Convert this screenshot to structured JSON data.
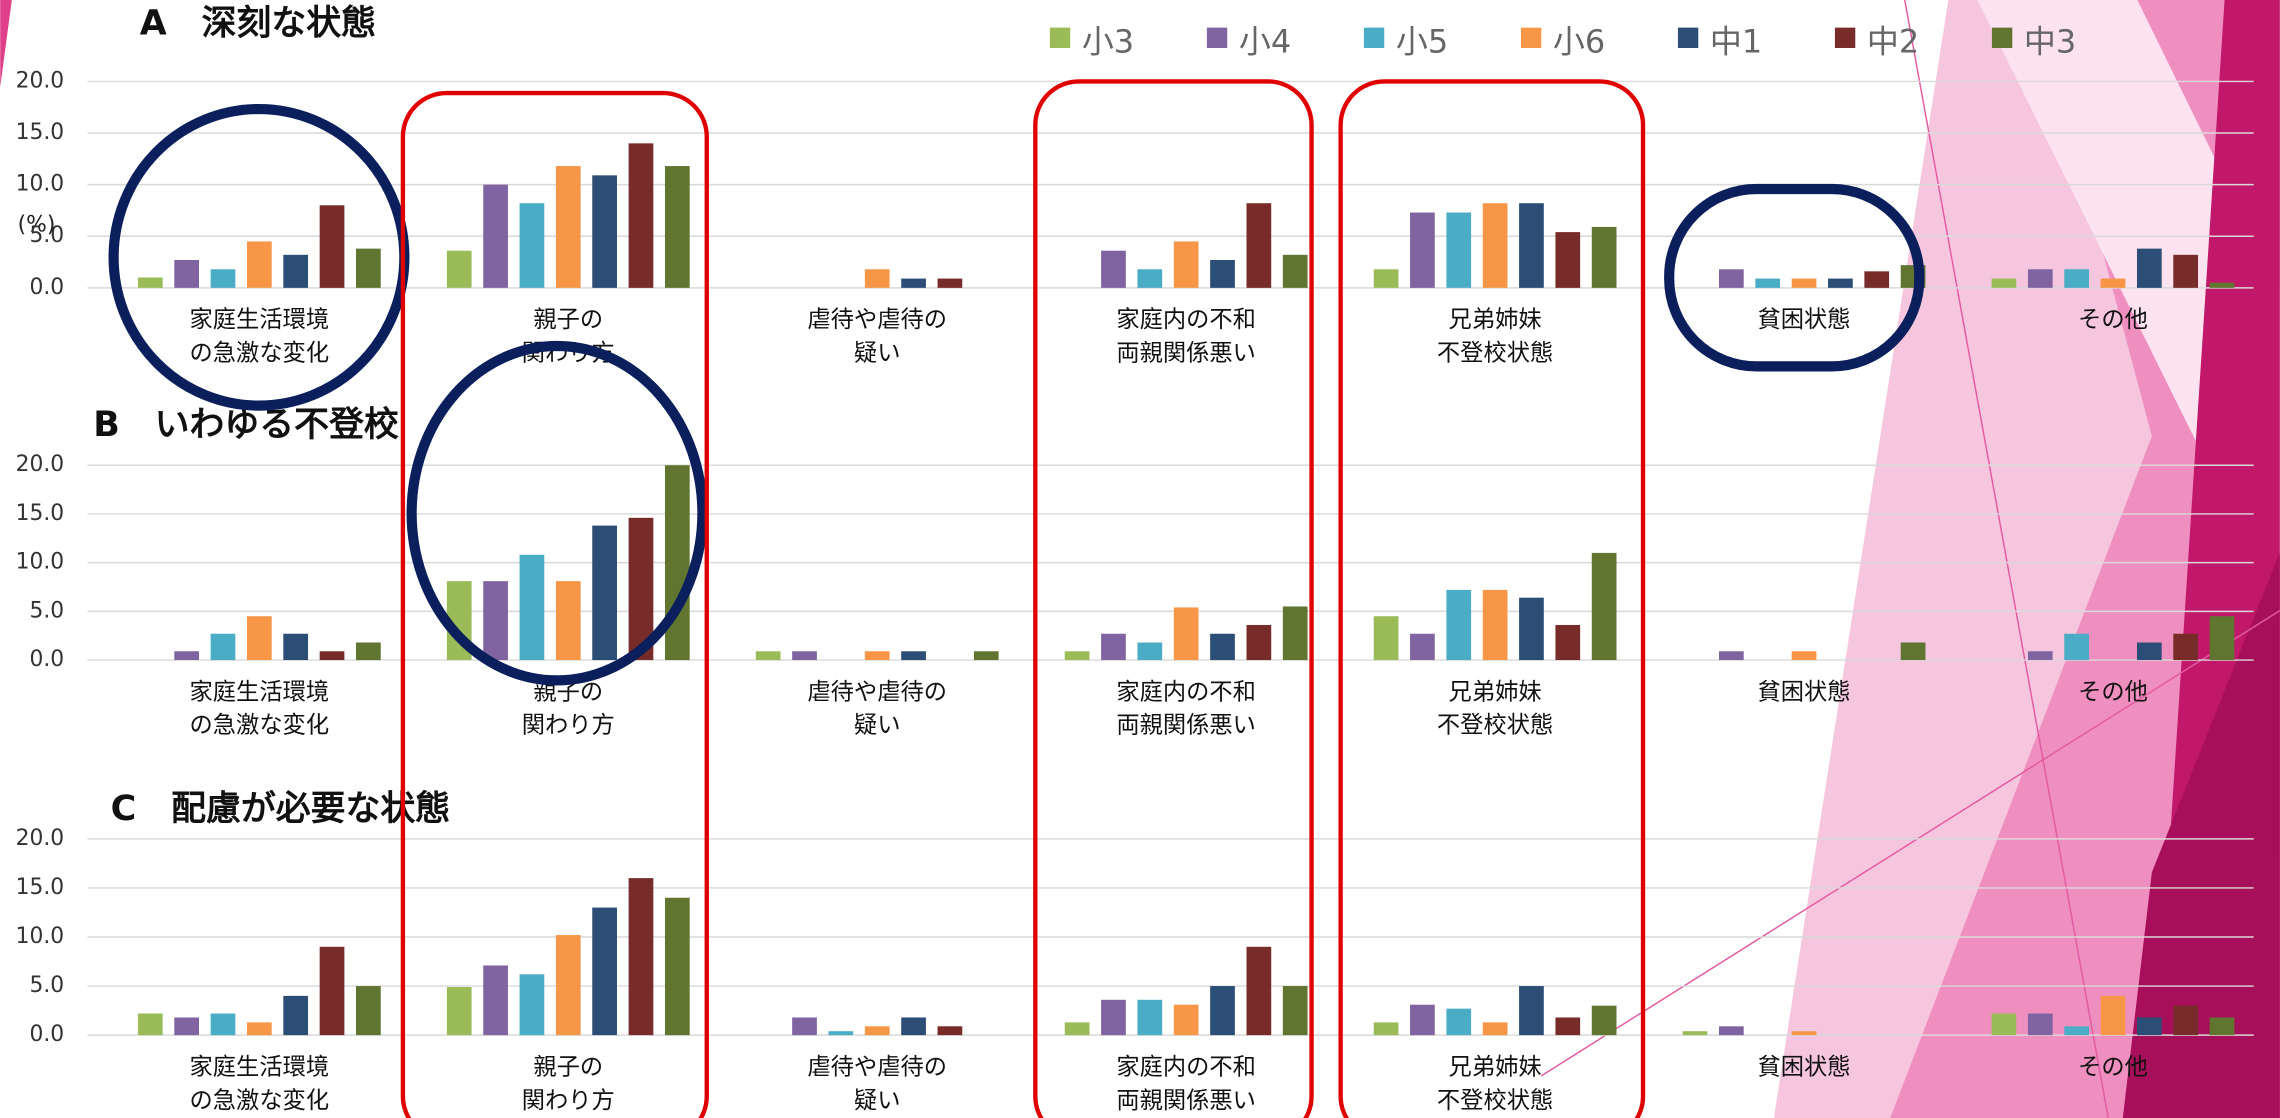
{
  "chart_data": [
    {
      "type": "bar",
      "title": "A　深刻な状態",
      "y_label": "(%)",
      "categories": [
        "家庭生活環境\nの急激な変化",
        "親子の\n関わり方",
        "虐待や虐待の\n疑い",
        "家庭内の不和\n両親関係悪い",
        "兄弟姉妹\n不登校状態",
        "貧困状態",
        "その他"
      ],
      "series": [
        {
          "name": "小3",
          "color": "#9bbb59",
          "values": [
            1.0,
            3.6,
            0,
            0,
            1.8,
            0,
            0.9
          ]
        },
        {
          "name": "小4",
          "color": "#8064a2",
          "values": [
            2.7,
            10.0,
            0,
            3.6,
            7.3,
            1.8,
            1.8
          ]
        },
        {
          "name": "小5",
          "color": "#4bacc6",
          "values": [
            1.8,
            8.2,
            0,
            1.8,
            7.3,
            0.9,
            1.8
          ]
        },
        {
          "name": "小6",
          "color": "#f79646",
          "values": [
            4.5,
            11.8,
            1.8,
            4.5,
            8.2,
            0.9,
            0.9
          ]
        },
        {
          "name": "中1",
          "color": "#2c4d75",
          "values": [
            3.2,
            10.9,
            0.9,
            2.7,
            8.2,
            0.9,
            3.8
          ]
        },
        {
          "name": "中2",
          "color": "#772c2a",
          "values": [
            8.0,
            14.0,
            0.9,
            8.2,
            5.4,
            1.6,
            3.2
          ]
        },
        {
          "name": "中3",
          "color": "#5f7530",
          "values": [
            3.8,
            11.8,
            0,
            3.2,
            5.9,
            2.2,
            0.5
          ]
        }
      ],
      "ylim": [
        0,
        20
      ],
      "yticks": [
        {
          "value": 0,
          "label": "0.0"
        },
        {
          "value": 5,
          "label": "5.0"
        },
        {
          "value": 10,
          "label": "10.0"
        },
        {
          "value": 15,
          "label": "15.0"
        },
        {
          "value": 20,
          "label": "20.0"
        }
      ],
      "grid": true
    },
    {
      "type": "bar",
      "title": "B　いわゆる不登校",
      "categories": [
        "家庭生活環境\nの急激な変化",
        "親子の\n関わり方",
        "虐待や虐待の\n疑い",
        "家庭内の不和\n両親関係悪い",
        "兄弟姉妹\n不登校状態",
        "貧困状態",
        "その他"
      ],
      "series": [
        {
          "name": "小3",
          "color": "#9bbb59",
          "values": [
            0,
            8.1,
            0.9,
            0.9,
            4.5,
            0,
            0
          ]
        },
        {
          "name": "小4",
          "color": "#8064a2",
          "values": [
            0.9,
            8.1,
            0.9,
            2.7,
            2.7,
            0.9,
            0.9
          ]
        },
        {
          "name": "小5",
          "color": "#4bacc6",
          "values": [
            2.7,
            10.8,
            0,
            1.8,
            7.2,
            0,
            2.7
          ]
        },
        {
          "name": "小6",
          "color": "#f79646",
          "values": [
            4.5,
            8.1,
            0.9,
            5.4,
            7.2,
            0.9,
            0
          ]
        },
        {
          "name": "中1",
          "color": "#2c4d75",
          "values": [
            2.7,
            13.8,
            0.9,
            2.7,
            6.4,
            0,
            1.8
          ]
        },
        {
          "name": "中2",
          "color": "#772c2a",
          "values": [
            0.9,
            14.6,
            0,
            3.6,
            3.6,
            0,
            2.7
          ]
        },
        {
          "name": "中3",
          "color": "#5f7530",
          "values": [
            1.8,
            20.0,
            0.9,
            5.5,
            11.0,
            1.8,
            4.5
          ]
        }
      ],
      "ylim": [
        0,
        20
      ],
      "yticks": [
        {
          "value": 0,
          "label": "0.0"
        },
        {
          "value": 5,
          "label": "5.0"
        },
        {
          "value": 10,
          "label": "10.0"
        },
        {
          "value": 15,
          "label": "15.0"
        },
        {
          "value": 20,
          "label": "20.0"
        }
      ],
      "grid": true
    },
    {
      "type": "bar",
      "title": "C　配慮が必要な状態",
      "categories": [
        "家庭生活環境\nの急激な変化",
        "親子の\n関わり方",
        "虐待や虐待の\n疑い",
        "家庭内の不和\n両親関係悪い",
        "兄弟姉妹\n不登校状態",
        "貧困状態",
        "その他"
      ],
      "series": [
        {
          "name": "小3",
          "color": "#9bbb59",
          "values": [
            2.2,
            4.9,
            0,
            1.3,
            1.3,
            0.4,
            2.2
          ]
        },
        {
          "name": "小4",
          "color": "#8064a2",
          "values": [
            1.8,
            7.1,
            1.8,
            3.6,
            3.1,
            0.9,
            2.2
          ]
        },
        {
          "name": "小5",
          "color": "#4bacc6",
          "values": [
            2.2,
            6.2,
            0.4,
            3.6,
            2.7,
            0,
            0.9
          ]
        },
        {
          "name": "小6",
          "color": "#f79646",
          "values": [
            1.3,
            10.2,
            0.9,
            3.1,
            1.3,
            0.4,
            4.0
          ]
        },
        {
          "name": "中1",
          "color": "#2c4d75",
          "values": [
            4.0,
            13.0,
            1.8,
            5.0,
            5.0,
            0,
            1.8
          ]
        },
        {
          "name": "中2",
          "color": "#772c2a",
          "values": [
            9.0,
            16.0,
            0.9,
            9.0,
            1.8,
            0,
            3.0
          ]
        },
        {
          "name": "中3",
          "color": "#5f7530",
          "values": [
            5.0,
            14.0,
            0,
            5.0,
            3.0,
            0,
            1.8
          ]
        }
      ],
      "ylim": [
        0,
        20
      ],
      "yticks": [
        {
          "value": 0,
          "label": "0.0"
        },
        {
          "value": 5,
          "label": "5.0"
        },
        {
          "value": 10,
          "label": "10.0"
        },
        {
          "value": 15,
          "label": "15.0"
        },
        {
          "value": 20,
          "label": "20.0"
        }
      ],
      "grid": true
    }
  ]
}
